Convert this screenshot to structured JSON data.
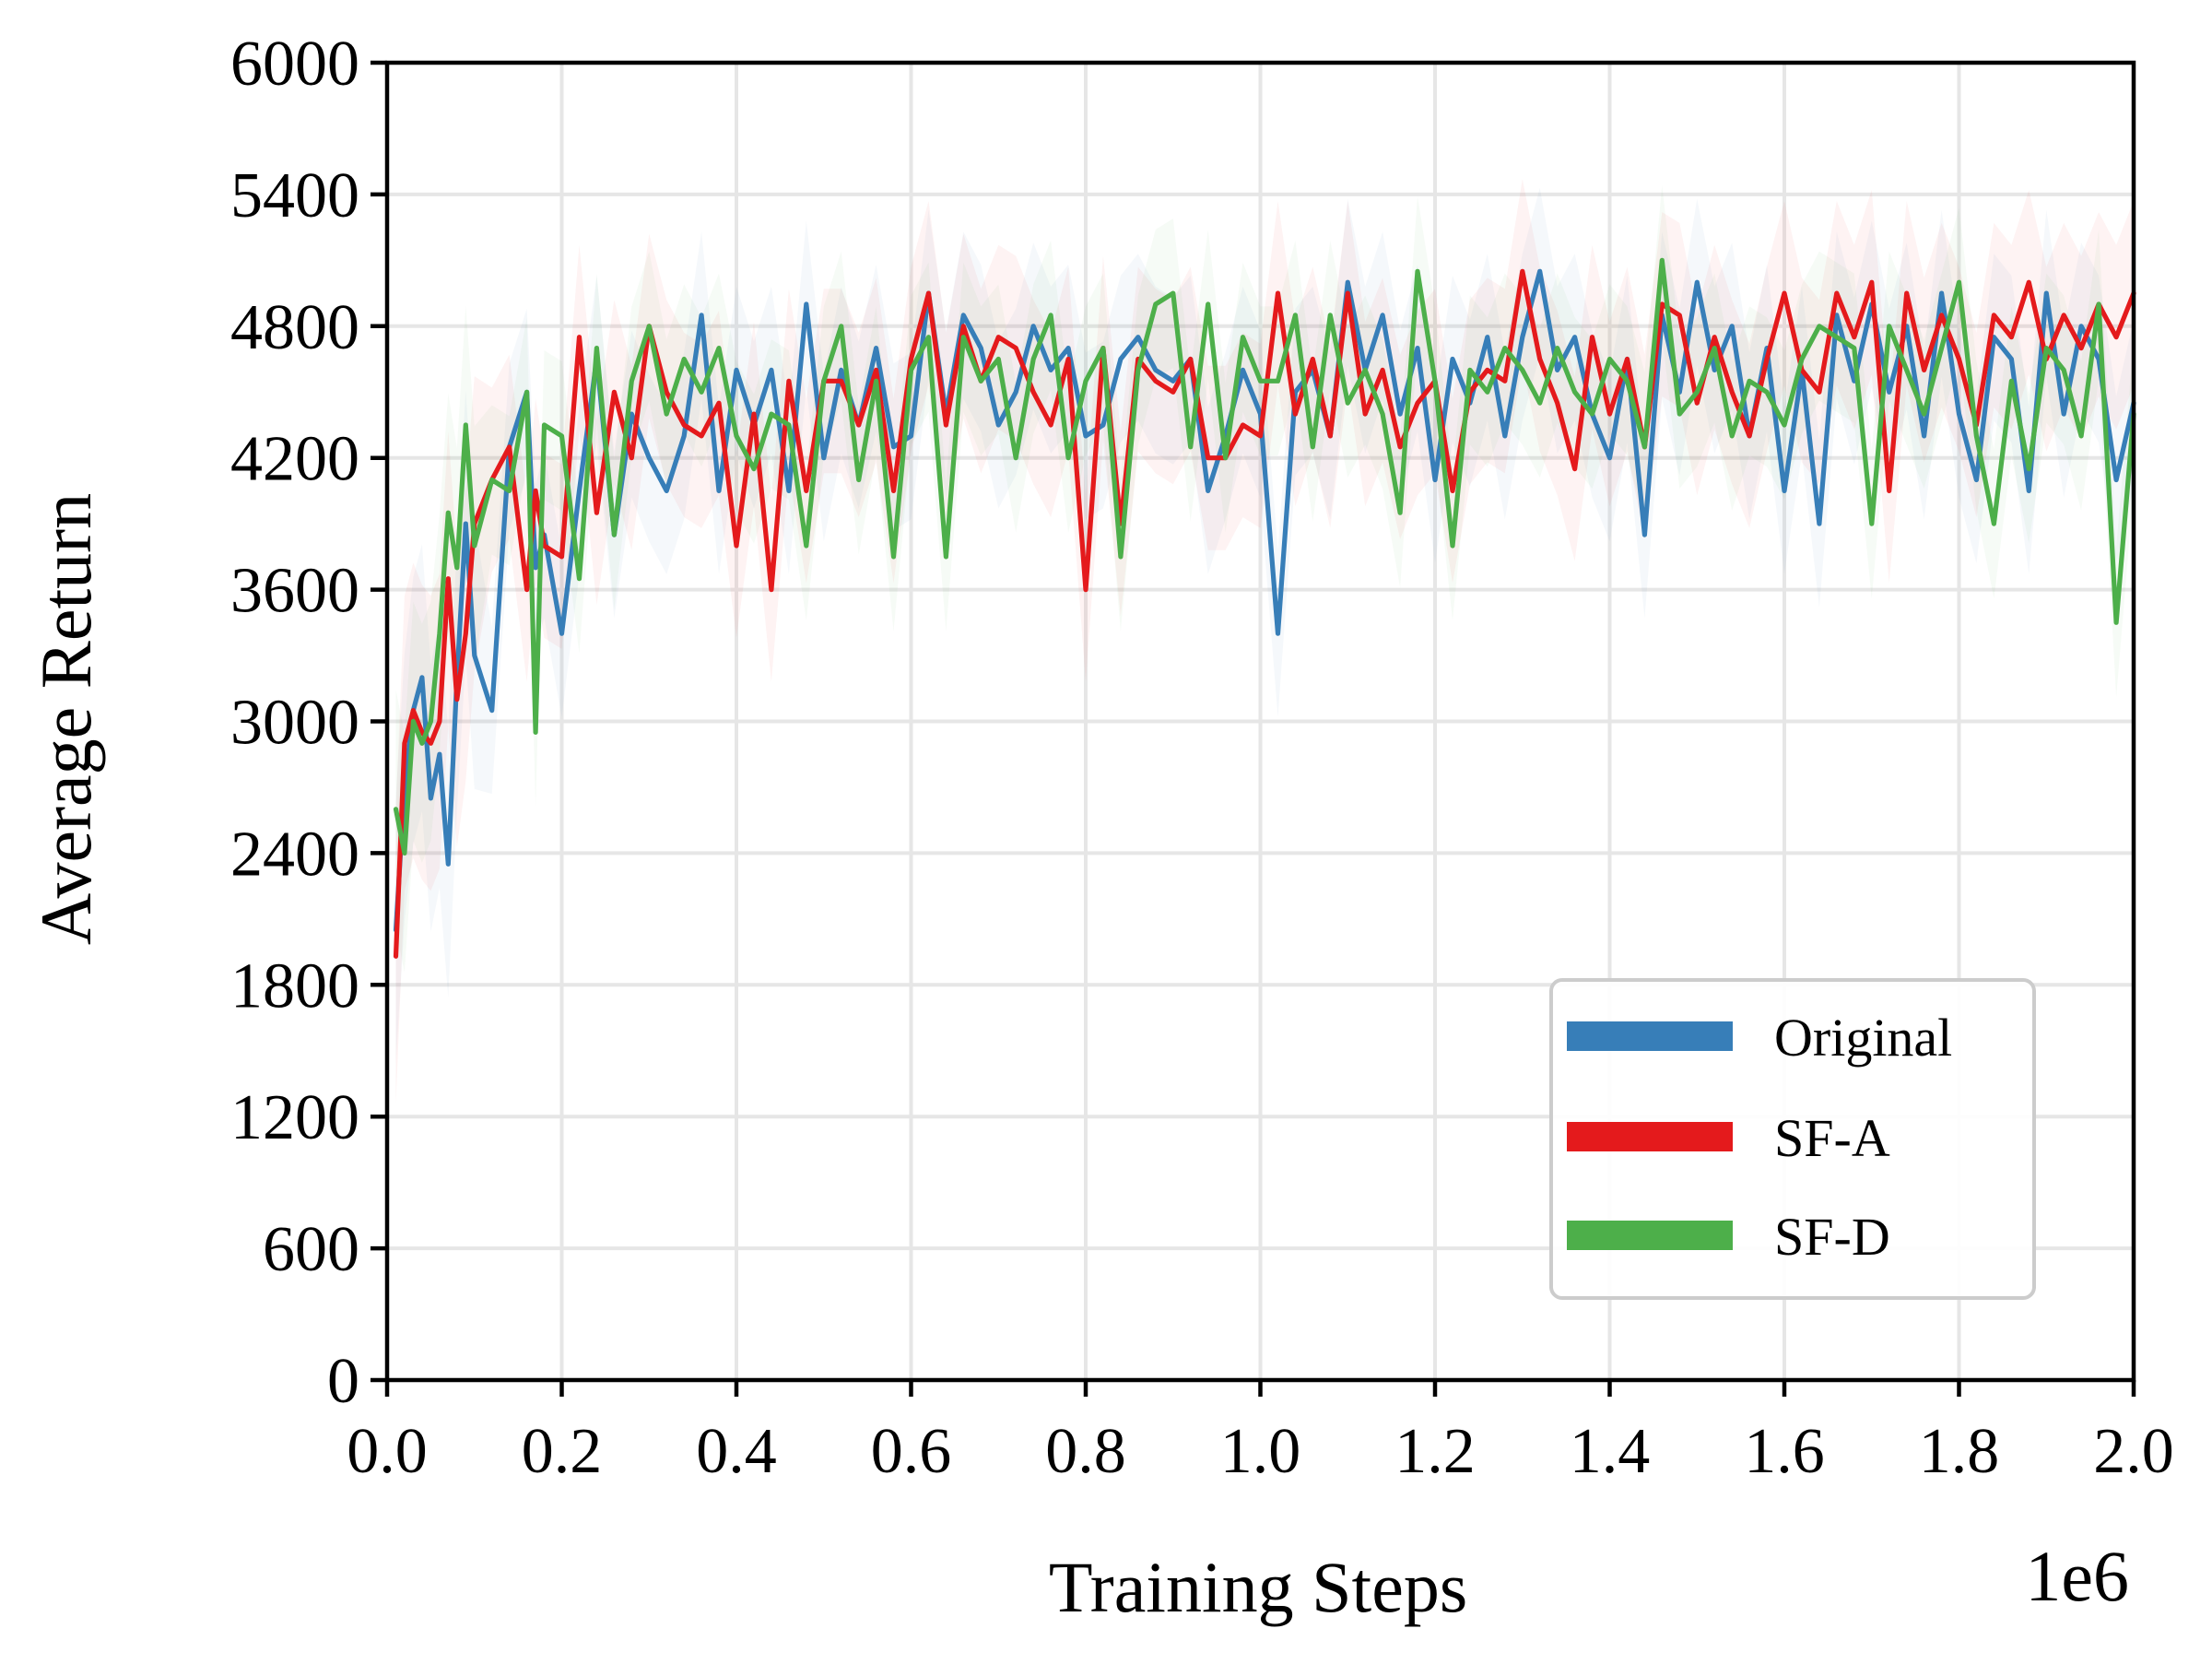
{
  "chart_data": {
    "type": "line",
    "title": "",
    "xlabel": "Training Steps",
    "ylabel": "Average Return",
    "x_scale_label": "1e6",
    "xlim": [
      0.0,
      2.0
    ],
    "ylim": [
      0,
      6000
    ],
    "xticks": [
      0.0,
      0.2,
      0.4,
      0.6,
      0.8,
      1.0,
      1.2,
      1.4,
      1.6,
      1.8,
      2.0
    ],
    "xtick_labels": [
      "0.0",
      "0.2",
      "0.4",
      "0.6",
      "0.8",
      "1.0",
      "1.2",
      "1.4",
      "1.6",
      "1.8",
      "2.0"
    ],
    "yticks": [
      0,
      600,
      1200,
      1800,
      2400,
      3000,
      3600,
      4200,
      4800,
      5400,
      6000
    ],
    "ytick_labels": [
      "0",
      "600",
      "1200",
      "1800",
      "2400",
      "3000",
      "3600",
      "4200",
      "4800",
      "5400",
      "6000"
    ],
    "grid": true,
    "legend_position": "lower-right",
    "x": [
      0.01,
      0.02,
      0.03,
      0.04,
      0.05,
      0.06,
      0.07,
      0.08,
      0.09,
      0.1,
      0.12,
      0.14,
      0.16,
      0.17,
      0.18,
      0.2,
      0.22,
      0.24,
      0.26,
      0.28,
      0.3,
      0.32,
      0.34,
      0.36,
      0.38,
      0.4,
      0.42,
      0.44,
      0.46,
      0.48,
      0.5,
      0.52,
      0.54,
      0.56,
      0.58,
      0.6,
      0.62,
      0.64,
      0.66,
      0.68,
      0.7,
      0.72,
      0.74,
      0.76,
      0.78,
      0.8,
      0.82,
      0.84,
      0.86,
      0.88,
      0.9,
      0.92,
      0.94,
      0.96,
      0.98,
      1.0,
      1.02,
      1.04,
      1.06,
      1.08,
      1.1,
      1.12,
      1.14,
      1.16,
      1.18,
      1.2,
      1.22,
      1.24,
      1.26,
      1.28,
      1.3,
      1.32,
      1.34,
      1.36,
      1.38,
      1.4,
      1.42,
      1.44,
      1.46,
      1.48,
      1.5,
      1.52,
      1.54,
      1.56,
      1.58,
      1.6,
      1.62,
      1.64,
      1.66,
      1.68,
      1.7,
      1.72,
      1.74,
      1.76,
      1.78,
      1.8,
      1.82,
      1.84,
      1.86,
      1.88,
      1.9,
      1.92,
      1.94,
      1.96,
      1.98,
      2.0
    ],
    "series": [
      {
        "name": "Original",
        "color": "#377eb8",
        "values": [
          2050,
          2700,
          3050,
          3200,
          2650,
          2850,
          2350,
          3200,
          3900,
          3300,
          3050,
          4250,
          4500,
          3700,
          3850,
          3400,
          4050,
          4650,
          3850,
          4400,
          4200,
          4050,
          4300,
          4850,
          4050,
          4600,
          4350,
          4600,
          4050,
          4900,
          4200,
          4600,
          4350,
          4700,
          4250,
          4300,
          4950,
          4400,
          4850,
          4700,
          4350,
          4500,
          4800,
          4600,
          4700,
          4300,
          4350,
          4650,
          4750,
          4600,
          4550,
          4650,
          4050,
          4300,
          4600,
          4400,
          3400,
          4500,
          4600,
          4300,
          5000,
          4600,
          4850,
          4400,
          4700,
          4100,
          4650,
          4450,
          4750,
          4300,
          4750,
          5050,
          4600,
          4750,
          4400,
          4200,
          4650,
          3850,
          4850,
          4500,
          5000,
          4600,
          4800,
          4300,
          4700,
          4050,
          4600,
          3900,
          4850,
          4550,
          4900,
          4500,
          4800,
          4300,
          4950,
          4400,
          4100,
          4750,
          4650,
          4050,
          4950,
          4400,
          4800,
          4650,
          4100,
          4450
        ]
      },
      {
        "name": "SF-A",
        "color": "#e41a1c",
        "values": [
          1930,
          2900,
          3050,
          2950,
          2900,
          3000,
          3650,
          3100,
          3400,
          3900,
          4100,
          4250,
          3600,
          4050,
          3800,
          3750,
          4750,
          3950,
          4500,
          4200,
          4800,
          4500,
          4350,
          4300,
          4450,
          3800,
          4400,
          3600,
          4550,
          4050,
          4550,
          4550,
          4350,
          4600,
          4050,
          4650,
          4950,
          4350,
          4800,
          4550,
          4750,
          4700,
          4500,
          4350,
          4650,
          3600,
          4700,
          3900,
          4650,
          4550,
          4500,
          4650,
          4200,
          4200,
          4350,
          4300,
          4950,
          4400,
          4650,
          4300,
          4950,
          4400,
          4600,
          4250,
          4450,
          4550,
          4050,
          4500,
          4600,
          4550,
          5050,
          4650,
          4450,
          4150,
          4750,
          4400,
          4650,
          4250,
          4900,
          4850,
          4450,
          4750,
          4500,
          4300,
          4650,
          4950,
          4600,
          4500,
          4950,
          4750,
          5000,
          4050,
          4950,
          4600,
          4850,
          4650,
          4350,
          4850,
          4750,
          5000,
          4650,
          4850,
          4700,
          4900,
          4750,
          4950
        ]
      },
      {
        "name": "SF-D",
        "color": "#4daf4a",
        "values": [
          2600,
          2400,
          3000,
          2900,
          3000,
          3400,
          3950,
          3700,
          4350,
          3800,
          4100,
          4050,
          4500,
          2950,
          4350,
          4300,
          3650,
          4700,
          3850,
          4550,
          4800,
          4400,
          4650,
          4500,
          4700,
          4300,
          4150,
          4400,
          4350,
          3800,
          4550,
          4800,
          4100,
          4550,
          3750,
          4600,
          4750,
          3750,
          4750,
          4550,
          4650,
          4200,
          4650,
          4850,
          4200,
          4550,
          4700,
          3750,
          4600,
          4900,
          4950,
          4250,
          4900,
          4200,
          4750,
          4550,
          4550,
          4850,
          4250,
          4850,
          4450,
          4600,
          4400,
          3950,
          5050,
          4550,
          3800,
          4600,
          4500,
          4700,
          4600,
          4450,
          4700,
          4500,
          4400,
          4650,
          4550,
          4250,
          5100,
          4400,
          4500,
          4700,
          4300,
          4550,
          4500,
          4350,
          4650,
          4800,
          4750,
          4700,
          3900,
          4800,
          4600,
          4400,
          4700,
          5000,
          4300,
          3900,
          4550,
          4150,
          4700,
          4600,
          4300,
          4900,
          3450,
          4400
        ]
      }
    ]
  }
}
